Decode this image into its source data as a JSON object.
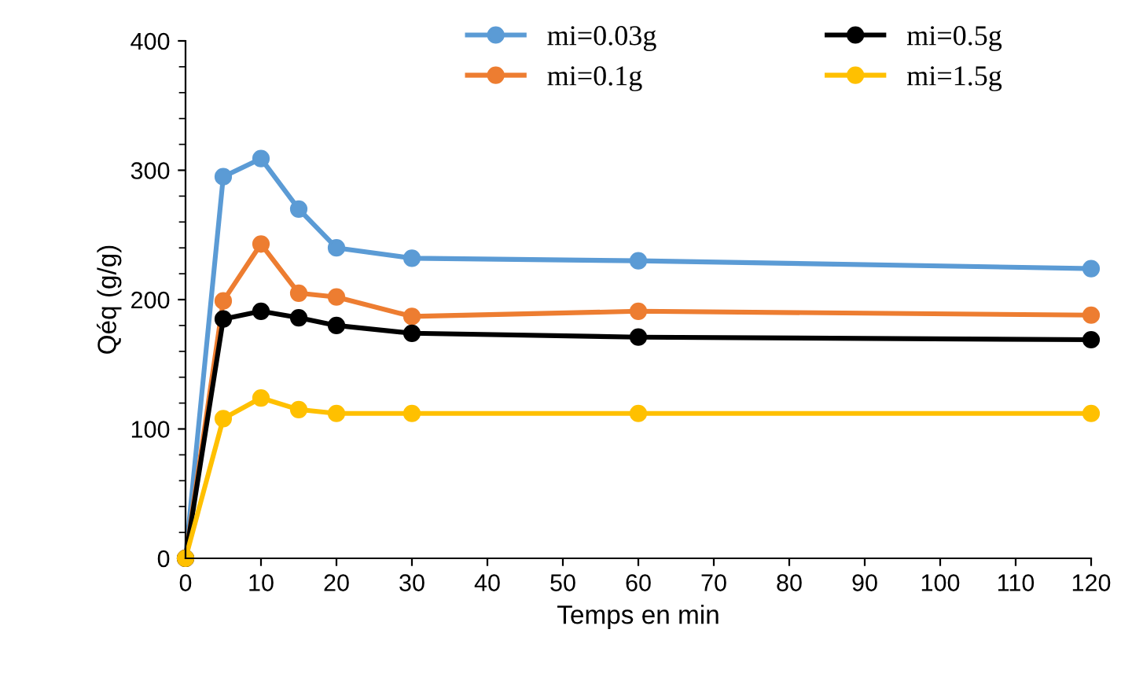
{
  "chart_data": {
    "type": "line",
    "xlabel": "Temps en min",
    "ylabel": "Qéq (g/g)",
    "x": [
      0,
      5,
      10,
      15,
      20,
      30,
      60,
      120
    ],
    "series": [
      {
        "name": "mi=0.03g",
        "color": "#5b9bd5",
        "values": [
          0,
          295,
          309,
          270,
          240,
          232,
          230,
          224
        ]
      },
      {
        "name": "mi=0.1g",
        "color": "#ed7d31",
        "values": [
          0,
          199,
          243,
          205,
          202,
          187,
          191,
          188
        ]
      },
      {
        "name": "mi=0.5g",
        "color": "#000000",
        "values": [
          0,
          185,
          191,
          186,
          180,
          174,
          171,
          169
        ]
      },
      {
        "name": "mi=1.5g",
        "color": "#ffc000",
        "values": [
          0,
          108,
          124,
          115,
          112,
          112,
          112,
          112
        ]
      }
    ],
    "xlim": [
      0,
      120
    ],
    "xticks": [
      0,
      10,
      20,
      30,
      40,
      50,
      60,
      70,
      80,
      90,
      100,
      110,
      120
    ],
    "ylim": [
      0,
      400
    ],
    "yticks": [
      0,
      100,
      200,
      300,
      400
    ],
    "grid": false,
    "legend": "top right",
    "marker": "circle",
    "line_style": "solid"
  }
}
